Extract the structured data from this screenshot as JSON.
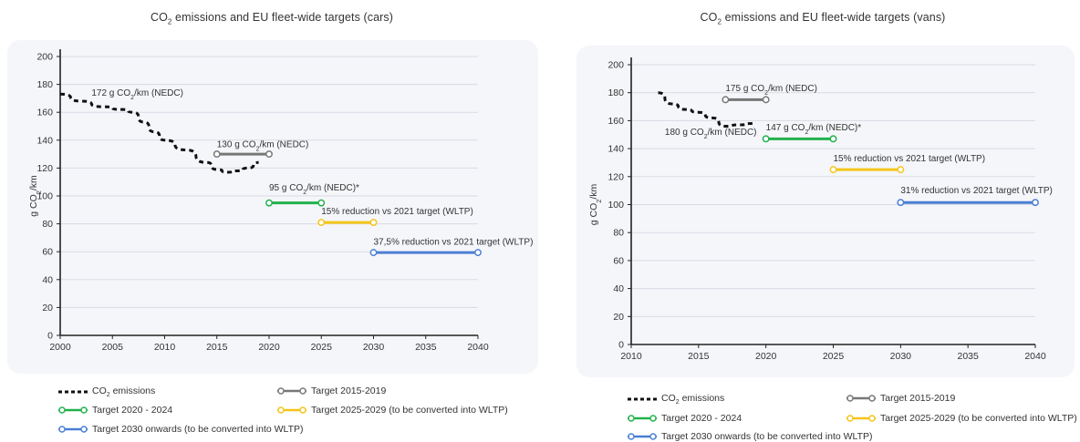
{
  "chart_data": [
    {
      "type": "line",
      "title": "CO2 emissions and EU fleet-wide targets (cars)",
      "title_parts": {
        "pre": "CO",
        "sub": "2",
        "post": " emissions and EU fleet-wide targets (cars)"
      },
      "ylabel_parts": {
        "pre": "g CO",
        "sub": "2",
        "post": "/km"
      },
      "xlim": [
        2000,
        2040
      ],
      "ylim": [
        0,
        200
      ],
      "xticks": [
        2000,
        2005,
        2010,
        2015,
        2020,
        2025,
        2030,
        2035,
        2040
      ],
      "yticks": [
        0,
        20,
        40,
        60,
        80,
        100,
        120,
        140,
        160,
        180,
        200
      ],
      "grid": true,
      "legend_position": "bottom",
      "series": [
        {
          "name": "CO2 emissions",
          "legend_parts": {
            "pre": "CO",
            "sub": "2",
            "post": " emissions"
          },
          "style": "dashed",
          "color": "#111111",
          "x": [
            2000,
            2002,
            2004,
            2006,
            2007,
            2008,
            2009,
            2010,
            2012,
            2014,
            2015,
            2016,
            2017,
            2018,
            2019
          ],
          "y": [
            173,
            168,
            164,
            162,
            160,
            153,
            146,
            140,
            133,
            124,
            119,
            117,
            118,
            120,
            124
          ]
        },
        {
          "name": "Target 2015-2019",
          "legend_parts": {
            "pre": "Target 2015-2019"
          },
          "color": "#777777",
          "x": [
            2015,
            2020
          ],
          "y": [
            130,
            130
          ]
        },
        {
          "name": "Target 2020 - 2024",
          "legend_parts": {
            "pre": "Target 2020 - 2024"
          },
          "color": "#22b14c",
          "x": [
            2020,
            2025
          ],
          "y": [
            95,
            95
          ]
        },
        {
          "name": "Target 2025-2029 (to be converted into WLTP)",
          "legend_parts": {
            "pre": "Target 2025-2029 (to be converted into WLTP)"
          },
          "color": "#f5c518",
          "x": [
            2025,
            2030
          ],
          "y": [
            81,
            81
          ]
        },
        {
          "name": "Target 2030 onwards (to be converted into WLTP)",
          "legend_parts": {
            "pre": "Target 2030 onwards (to be converted into WLTP)"
          },
          "color": "#4a7fd4",
          "x": [
            2030,
            2040
          ],
          "y": [
            59.4,
            59.4
          ]
        }
      ],
      "annotations": [
        {
          "pre": "172 g CO",
          "sub": "2",
          "post": "/km (NEDC)",
          "x": 2003,
          "y": 172
        },
        {
          "pre": "130 g CO",
          "sub": "2",
          "post": "/km (NEDC)",
          "x": 2015,
          "y": 135
        },
        {
          "pre": "95 g CO",
          "sub": "2",
          "post": "/km (NEDC)*",
          "x": 2020,
          "y": 104
        },
        {
          "pre": "15% reduction vs 2021 target (WLTP)",
          "sub": "",
          "post": "",
          "x": 2025,
          "y": 87
        },
        {
          "pre": "37,5% reduction vs 2021 target (WLTP)",
          "sub": "",
          "post": "",
          "x": 2030,
          "y": 65
        }
      ]
    },
    {
      "type": "line",
      "title": "CO2 emissions and EU fleet-wide targets (vans)",
      "title_parts": {
        "pre": "CO",
        "sub": "2",
        "post": " emissions and EU fleet-wide targets (vans)"
      },
      "ylabel_parts": {
        "pre": "g CO",
        "sub": "2",
        "post": "/km"
      },
      "xlim": [
        2010,
        2040
      ],
      "ylim": [
        0,
        200
      ],
      "xticks": [
        2010,
        2015,
        2020,
        2025,
        2030,
        2035,
        2040
      ],
      "yticks": [
        0,
        20,
        40,
        60,
        80,
        100,
        120,
        140,
        160,
        180,
        200
      ],
      "grid": true,
      "legend_position": "bottom",
      "series": [
        {
          "name": "CO2 emissions",
          "legend_parts": {
            "pre": "CO",
            "sub": "2",
            "post": " emissions"
          },
          "style": "dashed",
          "color": "#111111",
          "x": [
            2012,
            2013,
            2014,
            2015,
            2016,
            2017,
            2018,
            2019
          ],
          "y": [
            180,
            172,
            168,
            166,
            162,
            156,
            157,
            158
          ]
        },
        {
          "name": "Target 2015-2019",
          "legend_parts": {
            "pre": "Target 2015-2019"
          },
          "color": "#777777",
          "x": [
            2017,
            2020
          ],
          "y": [
            175,
            175
          ]
        },
        {
          "name": "Target 2020 - 2024",
          "legend_parts": {
            "pre": "Target 2020 - 2024"
          },
          "color": "#22b14c",
          "x": [
            2020,
            2025
          ],
          "y": [
            147,
            147
          ]
        },
        {
          "name": "Target 2025-2029 (to be converted into WLTP)",
          "legend_parts": {
            "pre": "Target 2025-2029 (to be converted into WLTP)"
          },
          "color": "#f5c518",
          "x": [
            2025,
            2030
          ],
          "y": [
            125,
            125
          ]
        },
        {
          "name": "Target 2030 onwards (to be converted into WLTP)",
          "legend_parts": {
            "pre": "Target 2030 onwards (to be converted into WLTP)"
          },
          "color": "#4a7fd4",
          "x": [
            2030,
            2040
          ],
          "y": [
            101.5,
            101.5
          ]
        }
      ],
      "annotations": [
        {
          "pre": "175 g CO",
          "sub": "2",
          "post": "/km (NEDC)",
          "x": 2017,
          "y": 181
        },
        {
          "pre": "180 g CO",
          "sub": "2",
          "post": "/km (NEDC)",
          "x": 2012.5,
          "y": 150
        },
        {
          "pre": "147 g CO",
          "sub": "2",
          "post": "/km (NEDC)*",
          "x": 2020,
          "y": 153
        },
        {
          "pre": "15% reduction vs 2021 target (WLTP)",
          "sub": "",
          "post": "",
          "x": 2025,
          "y": 131
        },
        {
          "pre": "31% reduction vs 2021 target (WLTP)",
          "sub": "",
          "post": "",
          "x": 2030,
          "y": 108
        }
      ]
    }
  ]
}
